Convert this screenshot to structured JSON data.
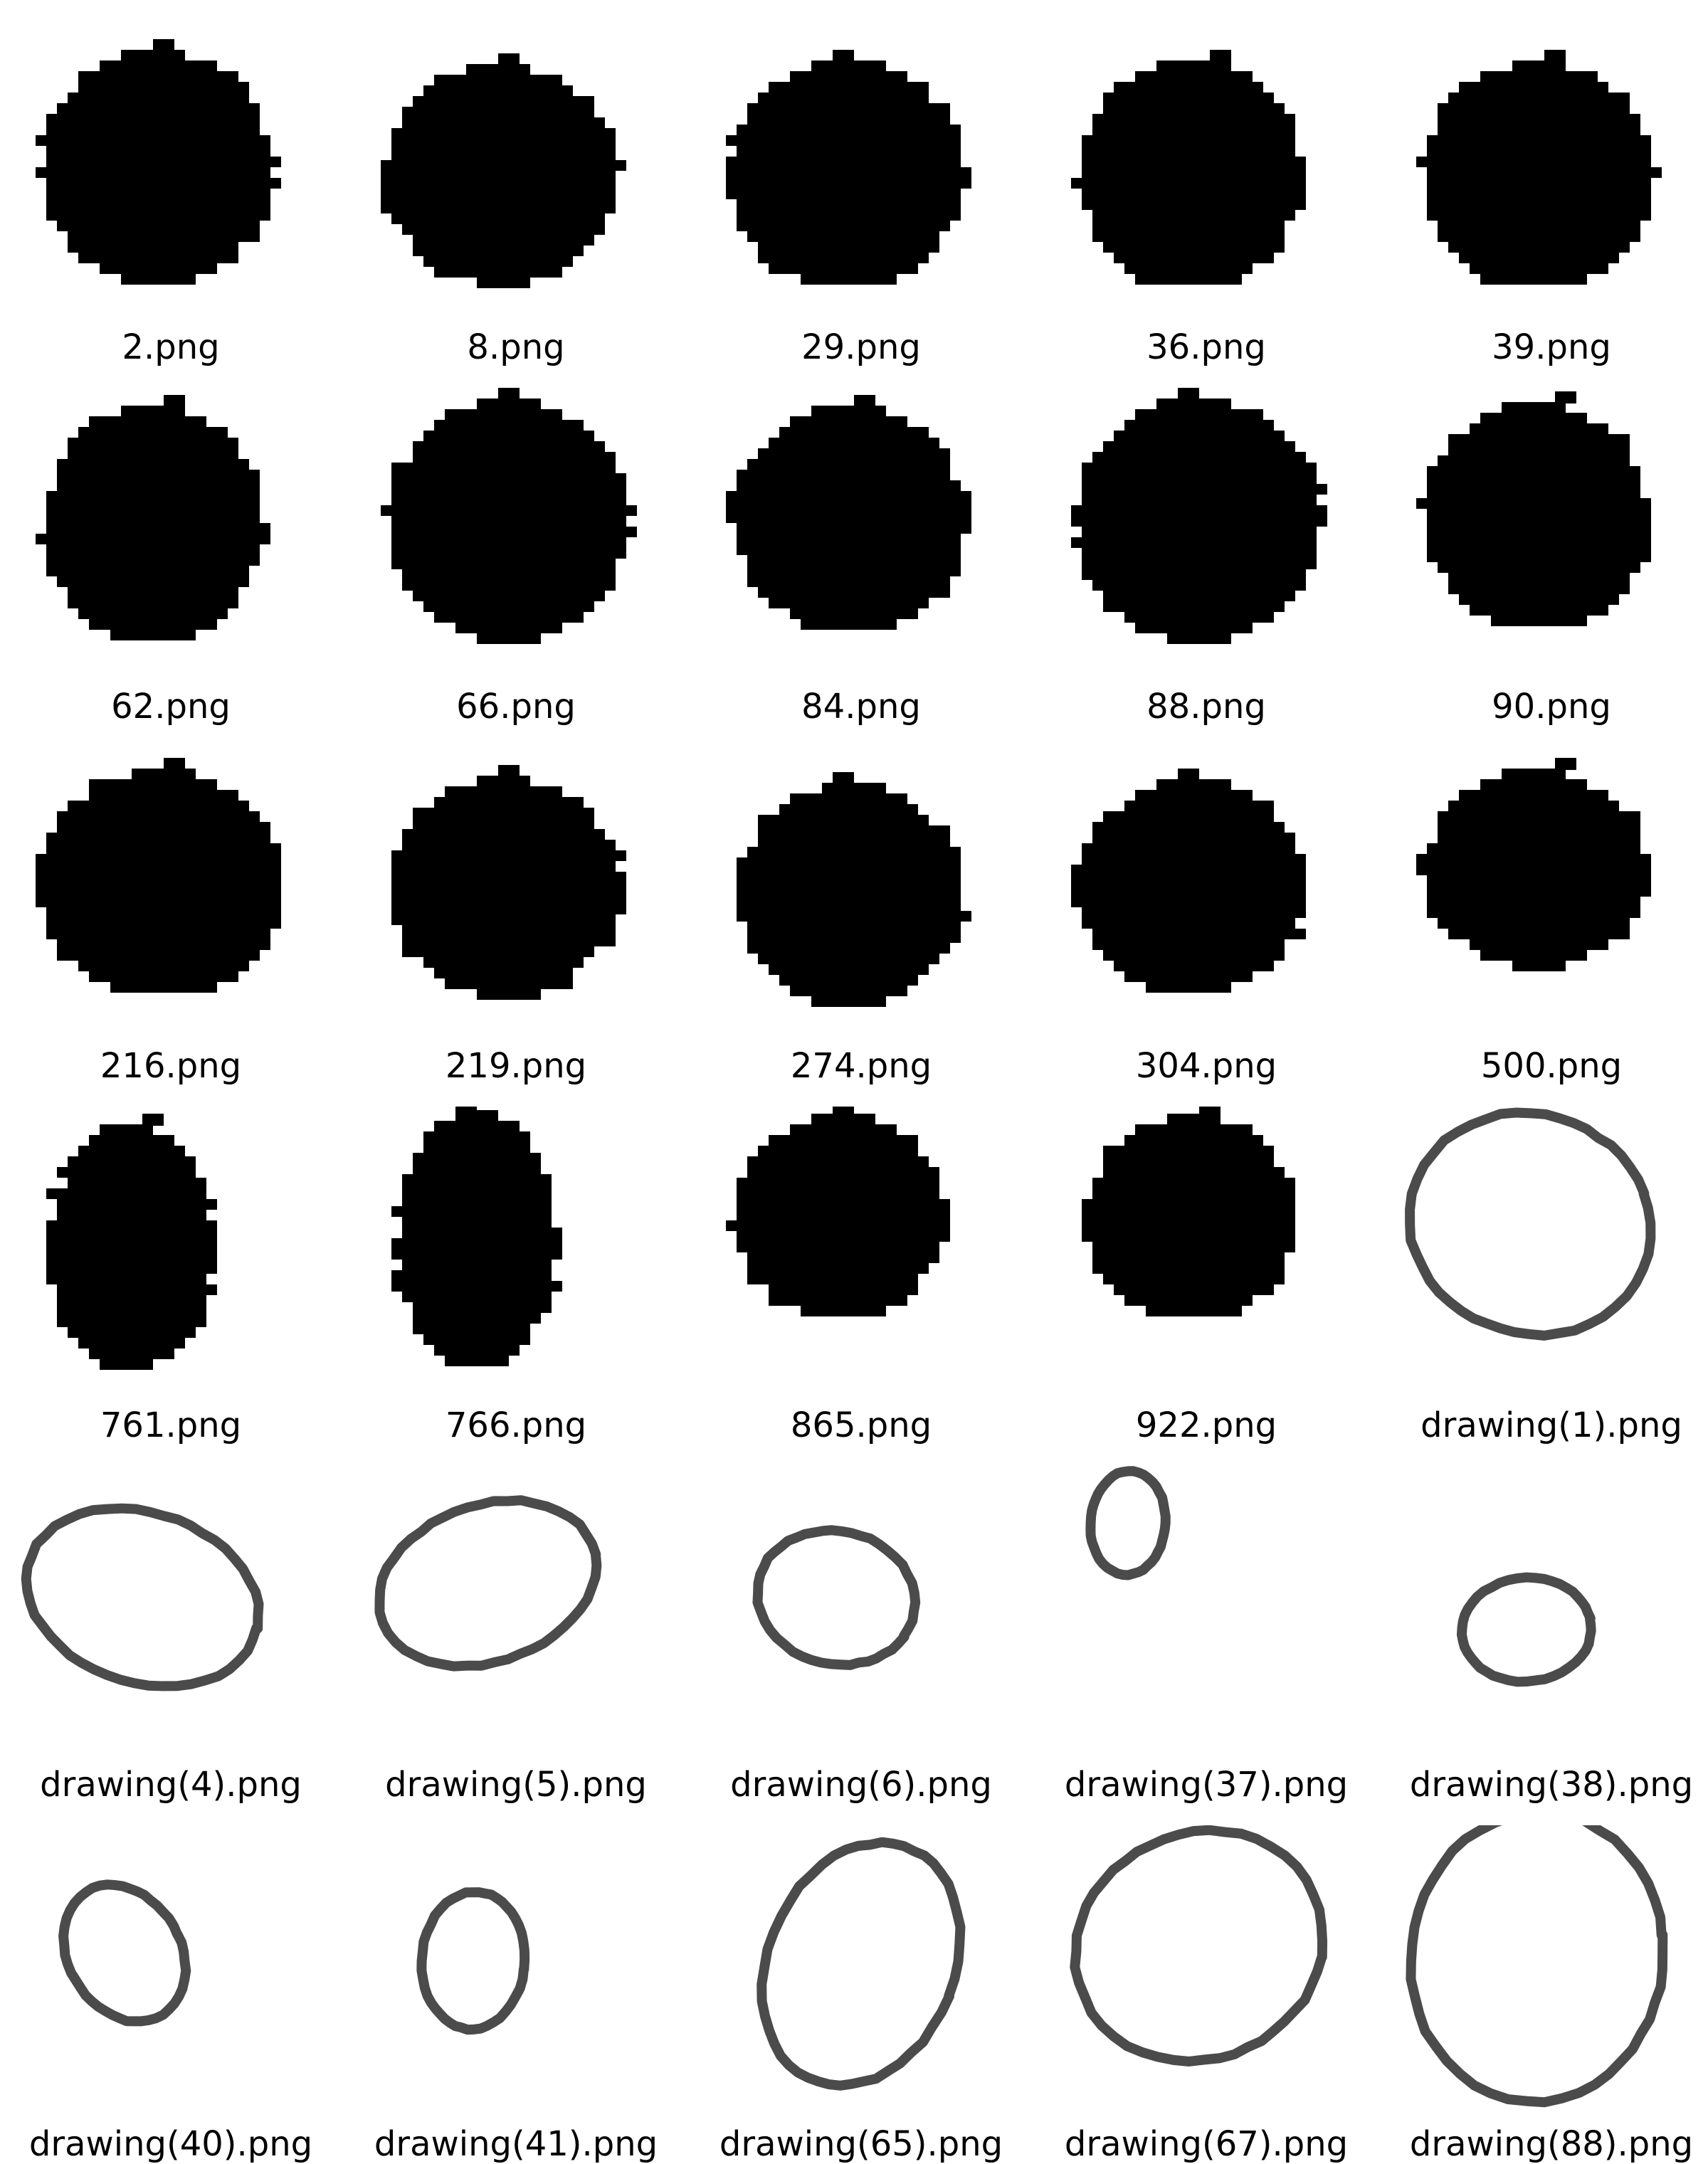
{
  "files": [
    {
      "name": "2.png",
      "kind": "blob"
    },
    {
      "name": "8.png",
      "kind": "blob"
    },
    {
      "name": "29.png",
      "kind": "blob"
    },
    {
      "name": "36.png",
      "kind": "blob"
    },
    {
      "name": "39.png",
      "kind": "blob"
    },
    {
      "name": "62.png",
      "kind": "blob"
    },
    {
      "name": "66.png",
      "kind": "blob"
    },
    {
      "name": "84.png",
      "kind": "blob"
    },
    {
      "name": "88.png",
      "kind": "blob"
    },
    {
      "name": "90.png",
      "kind": "blob"
    },
    {
      "name": "216.png",
      "kind": "blob"
    },
    {
      "name": "219.png",
      "kind": "blob"
    },
    {
      "name": "274.png",
      "kind": "blob"
    },
    {
      "name": "304.png",
      "kind": "blob"
    },
    {
      "name": "500.png",
      "kind": "blob"
    },
    {
      "name": "761.png",
      "kind": "blob"
    },
    {
      "name": "766.png",
      "kind": "blob"
    },
    {
      "name": "865.png",
      "kind": "blob"
    },
    {
      "name": "922.png",
      "kind": "blob"
    },
    {
      "name": "drawing(1).png",
      "kind": "outline"
    },
    {
      "name": "drawing(4).png",
      "kind": "outline"
    },
    {
      "name": "drawing(5).png",
      "kind": "outline"
    },
    {
      "name": "drawing(6).png",
      "kind": "outline"
    },
    {
      "name": "drawing(37).png",
      "kind": "outline"
    },
    {
      "name": "drawing(38).png",
      "kind": "outline"
    },
    {
      "name": "drawing(40).png",
      "kind": "outline"
    },
    {
      "name": "drawing(41).png",
      "kind": "outline"
    },
    {
      "name": "drawing(65).png",
      "kind": "outline"
    },
    {
      "name": "drawing(67).png",
      "kind": "outline"
    },
    {
      "name": "drawing(88).png",
      "kind": "outline"
    }
  ],
  "colors": {
    "background": "#ffffff",
    "blob_fill": "#000000",
    "outline_stroke": "#2b2b2b",
    "label_text": "#000000"
  }
}
